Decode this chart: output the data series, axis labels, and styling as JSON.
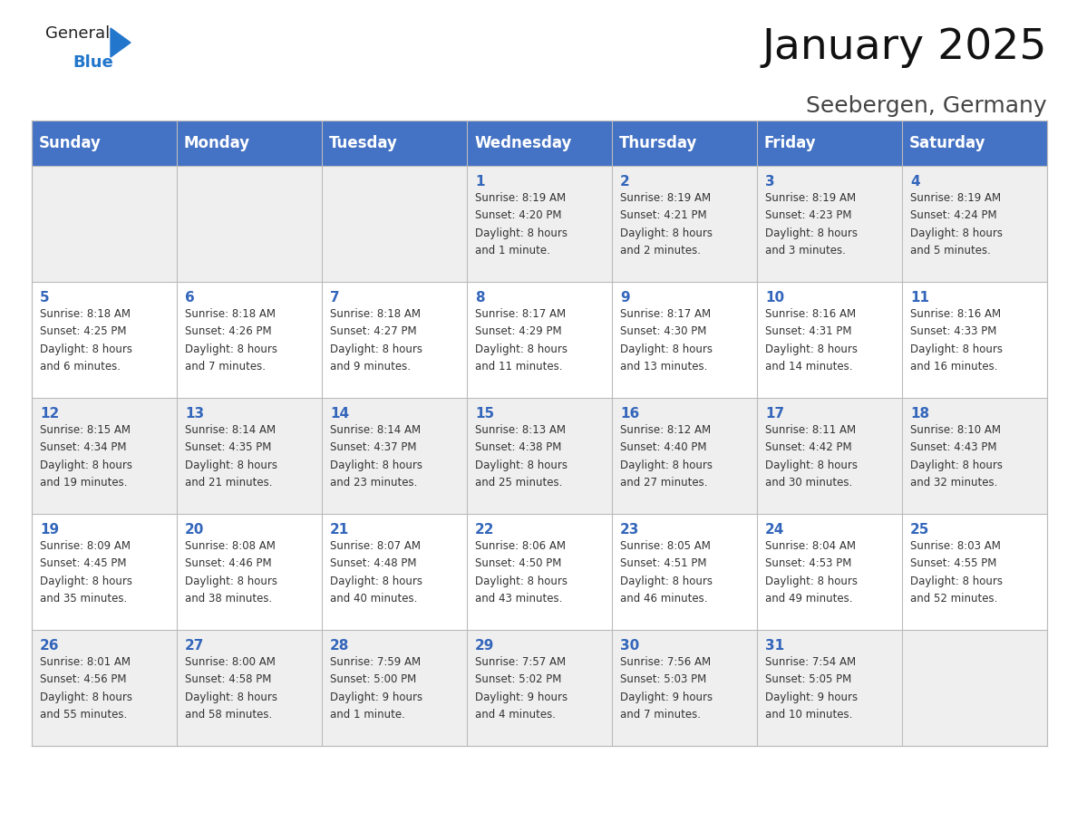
{
  "title": "January 2025",
  "subtitle": "Seebergen, Germany",
  "header_bg": "#4472C4",
  "header_text_color": "#FFFFFF",
  "header_font_size": 12,
  "day_names": [
    "Sunday",
    "Monday",
    "Tuesday",
    "Wednesday",
    "Thursday",
    "Friday",
    "Saturday"
  ],
  "cell_bg_odd": "#EFEFEF",
  "cell_bg_even": "#FFFFFF",
  "cell_text_color": "#333333",
  "day_num_color": "#3366BB",
  "grid_color": "#BBBBBB",
  "title_fontsize": 34,
  "subtitle_fontsize": 18,
  "cell_content_fontsize": 9,
  "days": [
    {
      "day": 1,
      "col": 3,
      "row": 0,
      "sunrise": "8:19 AM",
      "sunset": "4:20 PM",
      "dl1": "Daylight: 8 hours",
      "dl2": "and 1 minute."
    },
    {
      "day": 2,
      "col": 4,
      "row": 0,
      "sunrise": "8:19 AM",
      "sunset": "4:21 PM",
      "dl1": "Daylight: 8 hours",
      "dl2": "and 2 minutes."
    },
    {
      "day": 3,
      "col": 5,
      "row": 0,
      "sunrise": "8:19 AM",
      "sunset": "4:23 PM",
      "dl1": "Daylight: 8 hours",
      "dl2": "and 3 minutes."
    },
    {
      "day": 4,
      "col": 6,
      "row": 0,
      "sunrise": "8:19 AM",
      "sunset": "4:24 PM",
      "dl1": "Daylight: 8 hours",
      "dl2": "and 5 minutes."
    },
    {
      "day": 5,
      "col": 0,
      "row": 1,
      "sunrise": "8:18 AM",
      "sunset": "4:25 PM",
      "dl1": "Daylight: 8 hours",
      "dl2": "and 6 minutes."
    },
    {
      "day": 6,
      "col": 1,
      "row": 1,
      "sunrise": "8:18 AM",
      "sunset": "4:26 PM",
      "dl1": "Daylight: 8 hours",
      "dl2": "and 7 minutes."
    },
    {
      "day": 7,
      "col": 2,
      "row": 1,
      "sunrise": "8:18 AM",
      "sunset": "4:27 PM",
      "dl1": "Daylight: 8 hours",
      "dl2": "and 9 minutes."
    },
    {
      "day": 8,
      "col": 3,
      "row": 1,
      "sunrise": "8:17 AM",
      "sunset": "4:29 PM",
      "dl1": "Daylight: 8 hours",
      "dl2": "and 11 minutes."
    },
    {
      "day": 9,
      "col": 4,
      "row": 1,
      "sunrise": "8:17 AM",
      "sunset": "4:30 PM",
      "dl1": "Daylight: 8 hours",
      "dl2": "and 13 minutes."
    },
    {
      "day": 10,
      "col": 5,
      "row": 1,
      "sunrise": "8:16 AM",
      "sunset": "4:31 PM",
      "dl1": "Daylight: 8 hours",
      "dl2": "and 14 minutes."
    },
    {
      "day": 11,
      "col": 6,
      "row": 1,
      "sunrise": "8:16 AM",
      "sunset": "4:33 PM",
      "dl1": "Daylight: 8 hours",
      "dl2": "and 16 minutes."
    },
    {
      "day": 12,
      "col": 0,
      "row": 2,
      "sunrise": "8:15 AM",
      "sunset": "4:34 PM",
      "dl1": "Daylight: 8 hours",
      "dl2": "and 19 minutes."
    },
    {
      "day": 13,
      "col": 1,
      "row": 2,
      "sunrise": "8:14 AM",
      "sunset": "4:35 PM",
      "dl1": "Daylight: 8 hours",
      "dl2": "and 21 minutes."
    },
    {
      "day": 14,
      "col": 2,
      "row": 2,
      "sunrise": "8:14 AM",
      "sunset": "4:37 PM",
      "dl1": "Daylight: 8 hours",
      "dl2": "and 23 minutes."
    },
    {
      "day": 15,
      "col": 3,
      "row": 2,
      "sunrise": "8:13 AM",
      "sunset": "4:38 PM",
      "dl1": "Daylight: 8 hours",
      "dl2": "and 25 minutes."
    },
    {
      "day": 16,
      "col": 4,
      "row": 2,
      "sunrise": "8:12 AM",
      "sunset": "4:40 PM",
      "dl1": "Daylight: 8 hours",
      "dl2": "and 27 minutes."
    },
    {
      "day": 17,
      "col": 5,
      "row": 2,
      "sunrise": "8:11 AM",
      "sunset": "4:42 PM",
      "dl1": "Daylight: 8 hours",
      "dl2": "and 30 minutes."
    },
    {
      "day": 18,
      "col": 6,
      "row": 2,
      "sunrise": "8:10 AM",
      "sunset": "4:43 PM",
      "dl1": "Daylight: 8 hours",
      "dl2": "and 32 minutes."
    },
    {
      "day": 19,
      "col": 0,
      "row": 3,
      "sunrise": "8:09 AM",
      "sunset": "4:45 PM",
      "dl1": "Daylight: 8 hours",
      "dl2": "and 35 minutes."
    },
    {
      "day": 20,
      "col": 1,
      "row": 3,
      "sunrise": "8:08 AM",
      "sunset": "4:46 PM",
      "dl1": "Daylight: 8 hours",
      "dl2": "and 38 minutes."
    },
    {
      "day": 21,
      "col": 2,
      "row": 3,
      "sunrise": "8:07 AM",
      "sunset": "4:48 PM",
      "dl1": "Daylight: 8 hours",
      "dl2": "and 40 minutes."
    },
    {
      "day": 22,
      "col": 3,
      "row": 3,
      "sunrise": "8:06 AM",
      "sunset": "4:50 PM",
      "dl1": "Daylight: 8 hours",
      "dl2": "and 43 minutes."
    },
    {
      "day": 23,
      "col": 4,
      "row": 3,
      "sunrise": "8:05 AM",
      "sunset": "4:51 PM",
      "dl1": "Daylight: 8 hours",
      "dl2": "and 46 minutes."
    },
    {
      "day": 24,
      "col": 5,
      "row": 3,
      "sunrise": "8:04 AM",
      "sunset": "4:53 PM",
      "dl1": "Daylight: 8 hours",
      "dl2": "and 49 minutes."
    },
    {
      "day": 25,
      "col": 6,
      "row": 3,
      "sunrise": "8:03 AM",
      "sunset": "4:55 PM",
      "dl1": "Daylight: 8 hours",
      "dl2": "and 52 minutes."
    },
    {
      "day": 26,
      "col": 0,
      "row": 4,
      "sunrise": "8:01 AM",
      "sunset": "4:56 PM",
      "dl1": "Daylight: 8 hours",
      "dl2": "and 55 minutes."
    },
    {
      "day": 27,
      "col": 1,
      "row": 4,
      "sunrise": "8:00 AM",
      "sunset": "4:58 PM",
      "dl1": "Daylight: 8 hours",
      "dl2": "and 58 minutes."
    },
    {
      "day": 28,
      "col": 2,
      "row": 4,
      "sunrise": "7:59 AM",
      "sunset": "5:00 PM",
      "dl1": "Daylight: 9 hours",
      "dl2": "and 1 minute."
    },
    {
      "day": 29,
      "col": 3,
      "row": 4,
      "sunrise": "7:57 AM",
      "sunset": "5:02 PM",
      "dl1": "Daylight: 9 hours",
      "dl2": "and 4 minutes."
    },
    {
      "day": 30,
      "col": 4,
      "row": 4,
      "sunrise": "7:56 AM",
      "sunset": "5:03 PM",
      "dl1": "Daylight: 9 hours",
      "dl2": "and 7 minutes."
    },
    {
      "day": 31,
      "col": 5,
      "row": 4,
      "sunrise": "7:54 AM",
      "sunset": "5:05 PM",
      "dl1": "Daylight: 9 hours",
      "dl2": "and 10 minutes."
    }
  ],
  "logo_general_color": "#222222",
  "logo_blue_color": "#2277CC",
  "logo_triangle_color": "#2277CC"
}
